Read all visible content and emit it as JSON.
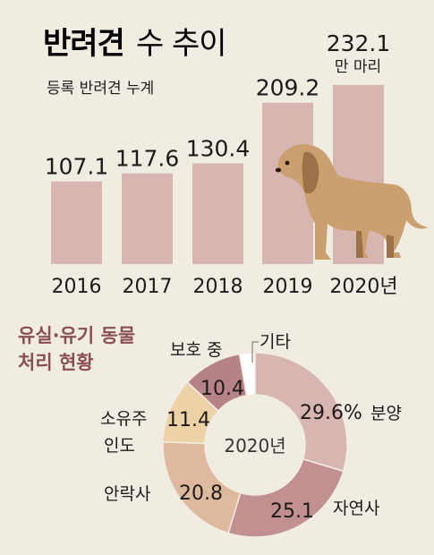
{
  "header": {
    "title_bold": "반려견",
    "title_rest": "수 추이",
    "subtitle": "등록 반려견 누계"
  },
  "chart_data": [
    {
      "type": "bar",
      "title": "반려견 수 추이",
      "subtitle": "등록 반려견 누계",
      "categories": [
        "2016",
        "2017",
        "2018",
        "2019",
        "2020년"
      ],
      "values": [
        107.1,
        117.6,
        130.4,
        209.2,
        232.1
      ],
      "value_labels": [
        "107.1",
        "117.6",
        "130.4",
        "209.2",
        "232.1"
      ],
      "unit": "만 마리",
      "ylim": [
        0,
        240
      ],
      "grid": false,
      "bar_color": "#d7b6b2"
    },
    {
      "type": "pie",
      "title_lines": [
        "유실·유기 동물",
        "처리 현황"
      ],
      "center_label": "2020년",
      "slices": [
        {
          "name": "분양",
          "value": 29.6,
          "label": "29.6%",
          "color": "#d7b6b2"
        },
        {
          "name": "자연사",
          "value": 25.1,
          "label": "25.1",
          "color": "#c39091"
        },
        {
          "name": "안락사",
          "value": 20.8,
          "label": "20.8",
          "color": "#deb99e"
        },
        {
          "name": "소유주 인도",
          "value": 11.4,
          "label": "11.4",
          "color": "#ecd2a6"
        },
        {
          "name": "보호 중",
          "value": 10.4,
          "label": "10.4",
          "color": "#b58288"
        },
        {
          "name": "기타",
          "value": 2.7,
          "label": "",
          "color": "#ffffff"
        }
      ],
      "category_labels": {
        "bunyang": "분양",
        "jayeonsa": "자연사",
        "anraksa": "안락사",
        "soyuju_1": "소유주",
        "soyuju_2": "인도",
        "boho": "보호 중",
        "gita": "기타"
      }
    }
  ],
  "illustration": {
    "icon": "dog-illustration-icon",
    "fur_color": "#c9a06e",
    "shade_color": "#9d7148"
  }
}
